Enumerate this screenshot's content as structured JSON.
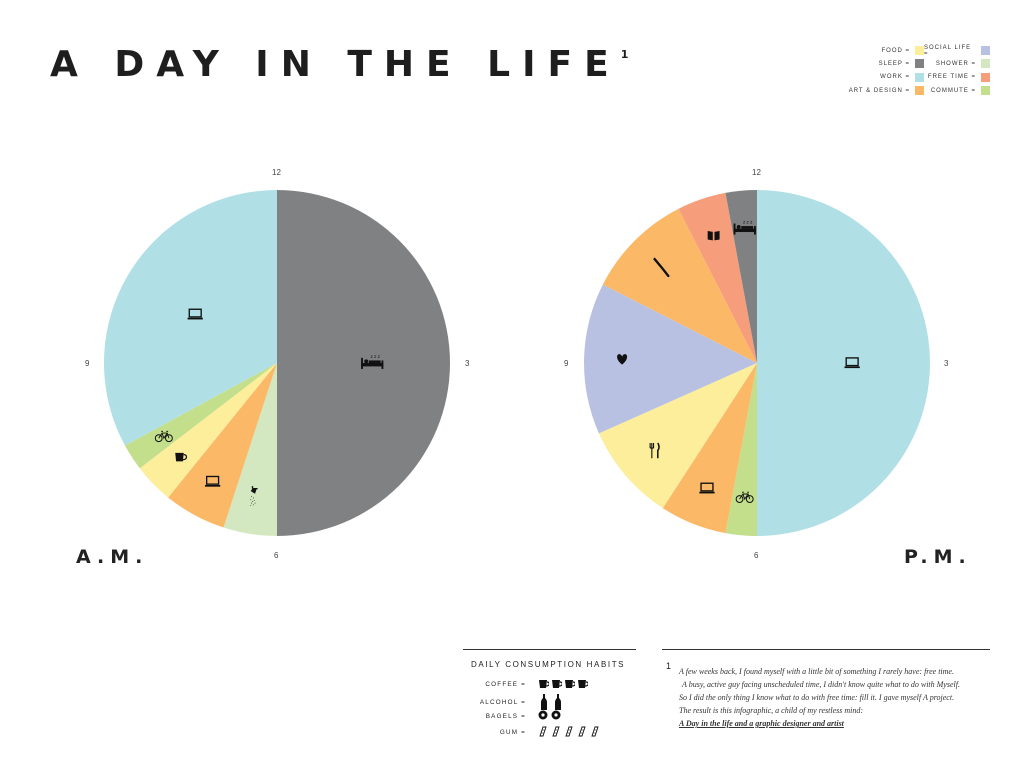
{
  "title": "A DAY IN THE LIFE",
  "title_footnote": "1",
  "legend": {
    "left": [
      {
        "label": "FOOD =",
        "color": "#fcee9a"
      },
      {
        "label": "SLEEP =",
        "color": "#808183"
      },
      {
        "label": "WORK =",
        "color": "#b0e0e5"
      },
      {
        "label": "ART & DESIGN =",
        "color": "#fbb968"
      }
    ],
    "right": [
      {
        "label": "SOCIAL LIFE =",
        "color": "#b9c1e3"
      },
      {
        "label": "SHOWER =",
        "color": "#d3e7c1"
      },
      {
        "label": "FREE TIME =",
        "color": "#f69e7b"
      },
      {
        "label": "COMMUTE =",
        "color": "#c3df8b"
      }
    ]
  },
  "clock": {
    "top": "12",
    "right": "3",
    "bottom": "6",
    "left": "9"
  },
  "chart_data": [
    {
      "type": "pie",
      "title": "A.M.",
      "unit": "hours",
      "start": "12 o'clock, clockwise",
      "slices": [
        {
          "label": "SLEEP",
          "value": 6.0,
          "color": "#808183",
          "icon": "bed-icon"
        },
        {
          "label": "SHOWER",
          "value": 0.6,
          "color": "#d3e7c1",
          "icon": "shower-icon"
        },
        {
          "label": "ART & DESIGN",
          "value": 0.7,
          "color": "#fbb968",
          "icon": "laptop-icon"
        },
        {
          "label": "FOOD",
          "value": 0.45,
          "color": "#fcee9a",
          "icon": "coffee-icon"
        },
        {
          "label": "COMMUTE",
          "value": 0.3,
          "color": "#c3df8b",
          "icon": "bicycle-icon"
        },
        {
          "label": "WORK",
          "value": 3.95,
          "color": "#b0e0e5",
          "icon": "laptop-icon"
        }
      ]
    },
    {
      "type": "pie",
      "title": "P.M.",
      "unit": "hours",
      "start": "12 o'clock, clockwise",
      "slices": [
        {
          "label": "WORK",
          "value": 6.0,
          "color": "#b0e0e5",
          "icon": "laptop-icon"
        },
        {
          "label": "COMMUTE",
          "value": 0.35,
          "color": "#c3df8b",
          "icon": "bicycle-icon"
        },
        {
          "label": "ART & DESIGN",
          "value": 0.75,
          "color": "#fbb968",
          "icon": "laptop-icon"
        },
        {
          "label": "FOOD",
          "value": 1.1,
          "color": "#fcee9a",
          "icon": "fork-knife-icon"
        },
        {
          "label": "SOCIAL LIFE",
          "value": 1.7,
          "color": "#b9c1e3",
          "icon": "heart-icon"
        },
        {
          "label": "ART & DESIGN",
          "value": 1.2,
          "color": "#fbb968",
          "icon": "paintbrush-icon"
        },
        {
          "label": "FREE TIME",
          "value": 0.55,
          "color": "#f69e7b",
          "icon": "book-icon"
        },
        {
          "label": "SLEEP",
          "value": 0.35,
          "color": "#808183",
          "icon": "bed-icon"
        }
      ]
    }
  ],
  "pie_labels": {
    "am": "A.M.",
    "pm": "P.M."
  },
  "consumption": {
    "title": "DAILY CONSUMPTION HABITS",
    "rows": [
      {
        "label": "COFFEE =",
        "icon": "mug-icon",
        "count": 4
      },
      {
        "label": "ALCOHOL =",
        "icon": "bottle-icon",
        "count": 2
      },
      {
        "label": "BAGELS =",
        "icon": "bagel-icon",
        "count": 2
      },
      {
        "label": "GUM =",
        "icon": "gum-icon",
        "count": 5
      }
    ]
  },
  "footnote": {
    "marker": "1",
    "lines": [
      "A few weeks back, I found myself with a little bit of something I rarely have: free time.",
      "A busy, active guy facing unscheduled time, I didn't know quite what to do with Myself.",
      "So I did the only thing I know what to do with free time: fill it.  I gave myself A project.",
      "The result is this infographic, a child of my restless mind:"
    ],
    "signature": "A Day in the life and a graphic designer and artist"
  }
}
